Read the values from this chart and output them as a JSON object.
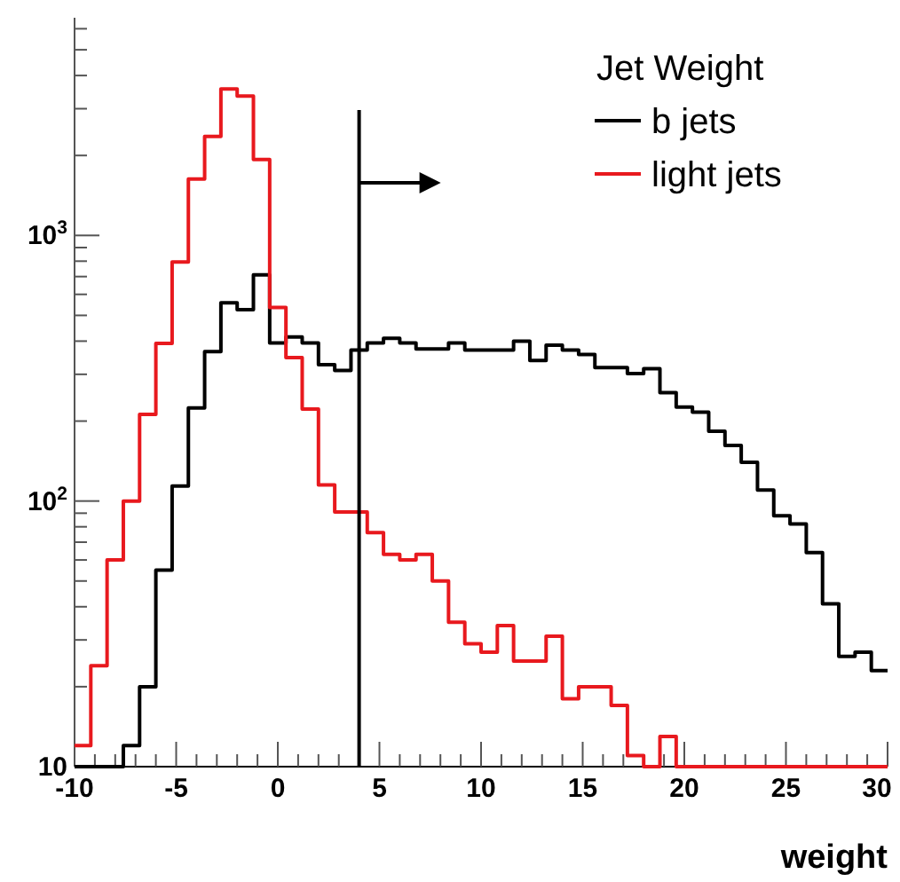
{
  "chart_data": {
    "type": "histogram",
    "xlabel": "weight",
    "legend_title": "Jet Weight",
    "legend": "top right",
    "log": "y",
    "grid": false,
    "bins": [
      -10,
      -9.2,
      -8.4,
      -7.6,
      -6.8,
      -6,
      -5.2,
      -4.4,
      -3.6,
      -2.8,
      -2,
      -1.2,
      -0.4,
      0.4,
      1.2,
      2,
      2.8,
      3.6,
      4.4,
      5.2,
      6,
      6.8,
      7.6,
      8.4,
      9.2,
      10,
      10.8,
      11.6,
      12.4,
      13.2,
      14,
      14.8,
      15.6,
      16.4,
      17.2,
      18,
      18.8,
      19.6,
      20.4,
      21.2,
      22,
      22.8,
      23.6,
      24.4,
      25.2,
      26,
      26.8,
      27.6,
      28.4,
      29.2,
      30
    ],
    "series": [
      {
        "name": "b jets",
        "color": "#000000",
        "values": [
          10,
          10,
          10,
          12,
          20,
          55,
          114,
          224,
          365,
          558,
          525,
          710,
          394,
          415,
          394,
          326,
          310,
          370,
          394,
          410,
          394,
          374,
          374,
          394,
          370,
          370,
          370,
          400,
          338,
          386,
          370,
          356,
          318,
          318,
          302,
          315,
          256,
          226,
          216,
          183,
          162,
          140,
          110,
          88,
          82,
          64,
          41,
          26,
          27,
          23
        ]
      },
      {
        "name": "light jets",
        "color": "#e8191e",
        "values": [
          12,
          24,
          60,
          100,
          212,
          392,
          794,
          1630,
          2360,
          3560,
          3350,
          1930,
          536,
          347,
          222,
          115,
          91,
          91,
          76,
          63,
          60,
          63,
          50,
          35,
          29,
          27,
          34,
          25,
          25,
          31,
          18,
          20,
          20,
          17,
          11,
          10,
          13,
          10,
          10,
          10,
          10,
          10,
          10,
          10,
          10,
          10,
          10,
          10,
          10,
          10
        ]
      }
    ],
    "xlim": [
      -10,
      30
    ],
    "xticks": [
      -10,
      {
        "value": -9,
        "label": null
      },
      {
        "value": -8,
        "label": null
      },
      {
        "value": -7,
        "label": null
      },
      {
        "value": -6,
        "label": null
      },
      -5,
      {
        "value": -4,
        "label": null
      },
      {
        "value": -3,
        "label": null
      },
      {
        "value": -2,
        "label": null
      },
      {
        "value": -1,
        "label": null
      },
      0,
      {
        "value": 1,
        "label": null
      },
      {
        "value": 2,
        "label": null
      },
      {
        "value": 3,
        "label": null
      },
      {
        "value": 4,
        "label": null
      },
      5,
      {
        "value": 6,
        "label": null
      },
      {
        "value": 7,
        "label": null
      },
      {
        "value": 8,
        "label": null
      },
      {
        "value": 9,
        "label": null
      },
      10,
      {
        "value": 11,
        "label": null
      },
      {
        "value": 12,
        "label": null
      },
      {
        "value": 13,
        "label": null
      },
      {
        "value": 14,
        "label": null
      },
      15,
      {
        "value": 16,
        "label": null
      },
      {
        "value": 17,
        "label": null
      },
      {
        "value": 18,
        "label": null
      },
      {
        "value": 19,
        "label": null
      },
      20,
      {
        "value": 21,
        "label": null
      },
      {
        "value": 22,
        "label": null
      },
      {
        "value": 23,
        "label": null
      },
      {
        "value": 24,
        "label": null
      },
      25,
      {
        "value": 26,
        "label": null
      },
      {
        "value": 27,
        "label": null
      },
      {
        "value": 28,
        "label": null
      },
      {
        "value": 29,
        "label": null
      },
      30
    ],
    "ylim": [
      10,
      6600
    ],
    "yticks": [
      10,
      {
        "value": 20,
        "label": null
      },
      {
        "value": 30,
        "label": null
      },
      {
        "value": 40,
        "label": null
      },
      {
        "value": 50,
        "label": null
      },
      {
        "value": 60,
        "label": null
      },
      {
        "value": 70,
        "label": null
      },
      {
        "value": 80,
        "label": null
      },
      {
        "value": 90,
        "label": null
      },
      {
        "value": 100,
        "label": "10$^{2}$"
      },
      {
        "value": 200,
        "label": null
      },
      {
        "value": 300,
        "label": null
      },
      {
        "value": 400,
        "label": null
      },
      {
        "value": 500,
        "label": null
      },
      {
        "value": 600,
        "label": null
      },
      {
        "value": 700,
        "label": null
      },
      {
        "value": 800,
        "label": null
      },
      {
        "value": 900,
        "label": null
      },
      {
        "value": 1000,
        "label": "10$^{3}$"
      },
      {
        "value": 2000,
        "label": null
      },
      {
        "value": 3000,
        "label": null
      },
      {
        "value": 4000,
        "label": null
      },
      {
        "value": 5000,
        "label": null
      },
      {
        "value": 6000,
        "label": null
      }
    ],
    "ref_lines": [
      {
        "axis": "x",
        "value": 4,
        "color": "#000000"
      }
    ]
  }
}
